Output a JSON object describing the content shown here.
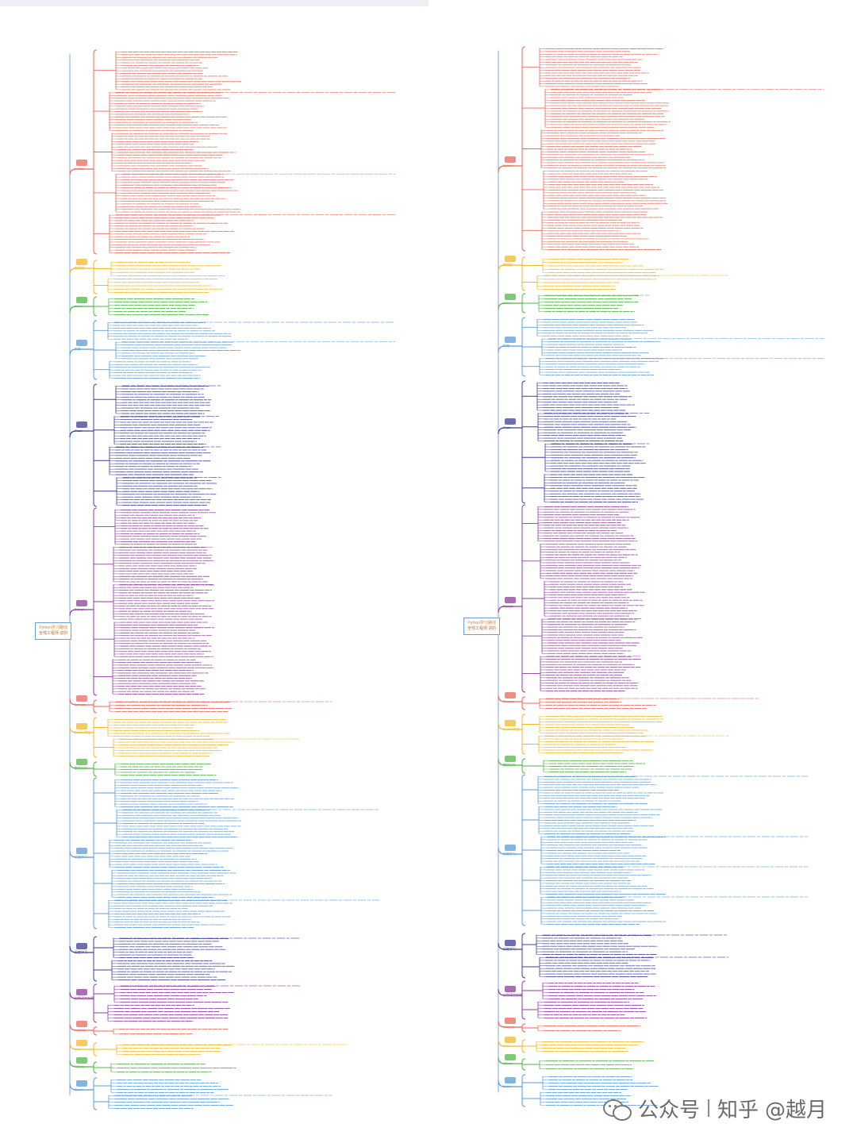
{
  "root": {
    "title": "Python学习路线",
    "subtitle": "全栈工程师 进阶"
  },
  "branches": [
    {
      "key": "python",
      "label": "Python",
      "color": "#e8685b",
      "icon": "python-logo-icon"
    },
    {
      "key": "db",
      "label": "数据库",
      "color": "#f1b82a",
      "icon": "database-icon"
    },
    {
      "key": "linux",
      "label": "Linux",
      "color": "#53b548",
      "icon": "linux-icon"
    },
    {
      "key": "frontend",
      "label": "前端",
      "color": "#5b9bd5",
      "icon": "html5-icon"
    },
    {
      "key": "flask",
      "label": "Flask",
      "color": "#3d3f9a",
      "icon": "flask-icon"
    },
    {
      "key": "django",
      "label": "Django",
      "color": "#8d3e9c",
      "icon": "django-icon"
    },
    {
      "key": "tornado",
      "label": "Tornado",
      "color": "#e8685b",
      "icon": "tornado-icon"
    },
    {
      "key": "spider",
      "label": "Python爬虫",
      "color": "#f1b82a",
      "icon": "spider-icon"
    },
    {
      "key": "analysis",
      "label": "数据分析",
      "color": "#53b548",
      "icon": "chart-icon"
    },
    {
      "key": "ml",
      "label": "机器学习",
      "color": "#5b9bd5",
      "icon": "ml-icon"
    },
    {
      "key": "dl",
      "label": "深度学习",
      "color": "#3d3f9a",
      "icon": "brain-icon"
    },
    {
      "key": "nlp",
      "label": "自然语言处理",
      "color": "#8d3e9c",
      "icon": "nlp-icon"
    },
    {
      "key": "hadoop",
      "label": "Hadoop",
      "color": "#e8685b",
      "icon": "hadoop-icon"
    },
    {
      "key": "hive",
      "label": "Hive",
      "color": "#f1b82a",
      "icon": "hive-icon"
    },
    {
      "key": "hbase",
      "label": "HBase",
      "color": "#53b548",
      "icon": "hbase-icon"
    },
    {
      "key": "spark",
      "label": "Spark",
      "color": "#5b9bd5",
      "icon": "spark-icon"
    }
  ],
  "watermark": {
    "platform": "公众号",
    "site": "知乎",
    "author": "@越月"
  }
}
